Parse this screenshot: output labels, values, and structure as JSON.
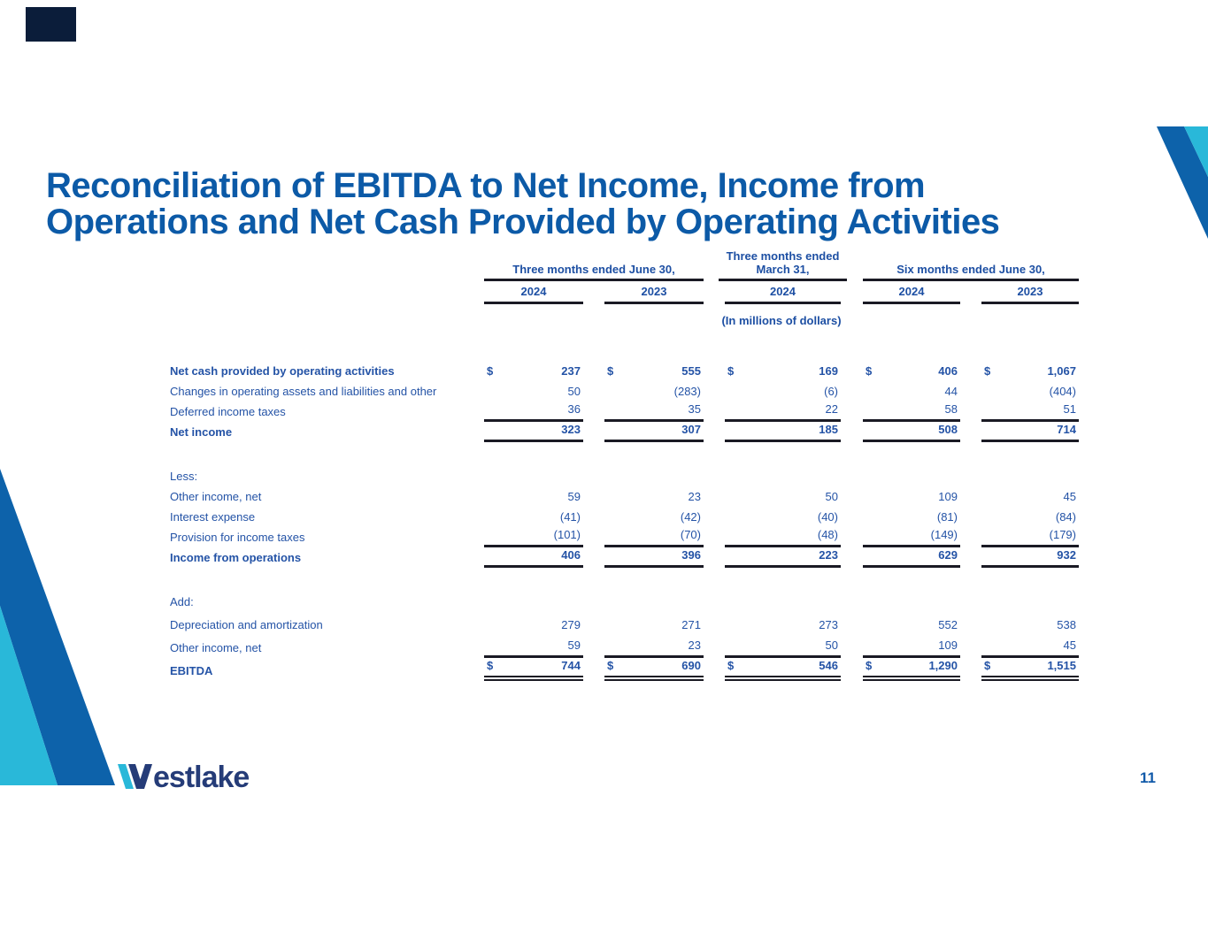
{
  "slide": {
    "title": "Reconciliation of EBITDA to Net Income, Income from Operations and Net Cash Provided by Operating Activities",
    "page_number": "11",
    "logo_text": "estlake",
    "logo_name": "Westlake"
  },
  "colors": {
    "title_blue": "#0c5aa7",
    "text_blue": "#2453a6",
    "rule_dark": "#1a1a24",
    "band_dark_blue": "#0d62aa",
    "band_cyan": "#29b8d9",
    "logo_navy": "#253c78",
    "corner_navy": "#0b1d3a"
  },
  "table": {
    "units_note": "(In millions of dollars)",
    "column_groups": [
      {
        "label": "Three months ended June 30,",
        "years": [
          "2024",
          "2023"
        ]
      },
      {
        "label": "Three months ended March 31,",
        "years": [
          "2024"
        ]
      },
      {
        "label": "Six months ended June 30,",
        "years": [
          "2024",
          "2023"
        ]
      }
    ],
    "sections": [
      {
        "rows": [
          {
            "label": "Net cash provided by operating activities",
            "bold": true,
            "dollar": true,
            "values": [
              "237",
              "555",
              "169",
              "406",
              "1,067"
            ]
          },
          {
            "label": "Changes in operating assets and liabilities and other",
            "values": [
              "50",
              "(283)",
              "(6)",
              "44",
              "(404)"
            ]
          },
          {
            "label": "Deferred income taxes",
            "values": [
              "36",
              "35",
              "22",
              "58",
              "51"
            ],
            "line": "single"
          },
          {
            "label": "Net income",
            "bold": true,
            "values": [
              "323",
              "307",
              "185",
              "508",
              "714"
            ],
            "line": "single"
          }
        ]
      },
      {
        "heading": "Less:",
        "rows": [
          {
            "label": "Other income, net",
            "values": [
              "59",
              "23",
              "50",
              "109",
              "45"
            ]
          },
          {
            "label": "Interest expense",
            "values": [
              "(41)",
              "(42)",
              "(40)",
              "(81)",
              "(84)"
            ]
          },
          {
            "label": "Provision for income taxes",
            "values": [
              "(101)",
              "(70)",
              "(48)",
              "(149)",
              "(179)"
            ],
            "line": "single"
          },
          {
            "label": "Income from operations",
            "bold": true,
            "values": [
              "406",
              "396",
              "223",
              "629",
              "932"
            ],
            "line": "single"
          }
        ]
      },
      {
        "heading": "Add:",
        "rows": [
          {
            "label": "Depreciation and amortization",
            "values": [
              "279",
              "271",
              "273",
              "552",
              "538"
            ]
          },
          {
            "label": "Other income, net",
            "values": [
              "59",
              "23",
              "50",
              "109",
              "45"
            ],
            "line": "single"
          },
          {
            "label": "EBITDA",
            "bold": true,
            "dollar": true,
            "values": [
              "744",
              "690",
              "546",
              "1,290",
              "1,515"
            ],
            "line": "double"
          }
        ]
      }
    ]
  }
}
